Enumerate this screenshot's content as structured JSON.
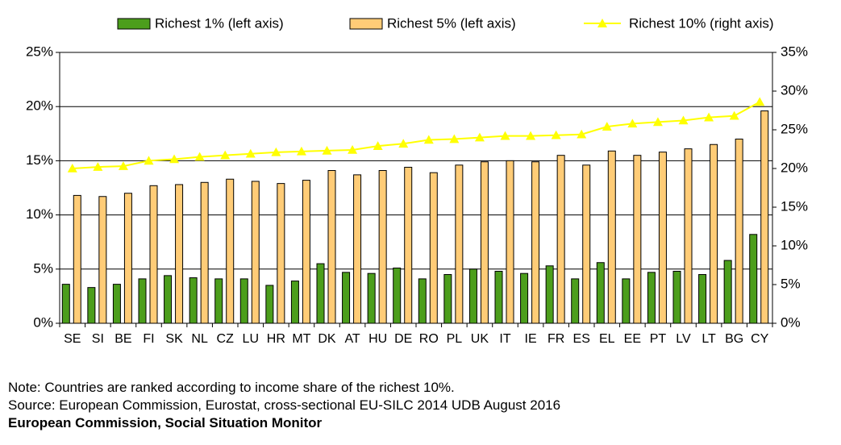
{
  "chart_data": {
    "type": "bar",
    "categories": [
      "SE",
      "SI",
      "BE",
      "FI",
      "SK",
      "NL",
      "CZ",
      "LU",
      "HR",
      "MT",
      "DK",
      "AT",
      "HU",
      "DE",
      "RO",
      "PL",
      "UK",
      "IT",
      "IE",
      "FR",
      "ES",
      "EL",
      "EE",
      "PT",
      "LV",
      "LT",
      "BG",
      "CY"
    ],
    "series": [
      {
        "name": "Richest 1% (left axis)",
        "kind": "bar",
        "axis": "left",
        "color": "#4c9e1c",
        "values": [
          3.6,
          3.3,
          3.6,
          4.1,
          4.4,
          4.2,
          4.1,
          4.1,
          3.5,
          3.9,
          5.5,
          4.7,
          4.6,
          5.1,
          4.1,
          4.5,
          5.0,
          4.8,
          4.6,
          5.3,
          4.1,
          5.6,
          4.1,
          4.7,
          4.8,
          4.5,
          5.8,
          8.2
        ]
      },
      {
        "name": "Richest 5% (left axis)",
        "kind": "bar",
        "axis": "left",
        "color": "#ffcc77",
        "values": [
          11.8,
          11.7,
          12.0,
          12.7,
          12.8,
          13.0,
          13.3,
          13.1,
          12.9,
          13.2,
          14.1,
          13.7,
          14.1,
          14.4,
          13.9,
          14.6,
          14.9,
          15.0,
          14.9,
          15.5,
          14.6,
          15.9,
          15.5,
          15.8,
          16.1,
          16.5,
          17.0,
          19.6
        ]
      },
      {
        "name": "Richest 10% (right axis)",
        "kind": "line",
        "axis": "right",
        "color": "#ffff00",
        "values": [
          20.0,
          20.2,
          20.3,
          21.0,
          21.2,
          21.5,
          21.7,
          21.9,
          22.1,
          22.2,
          22.3,
          22.4,
          22.9,
          23.2,
          23.7,
          23.8,
          24.0,
          24.2,
          24.2,
          24.3,
          24.4,
          25.4,
          25.8,
          26.0,
          26.2,
          26.6,
          26.8,
          28.6
        ]
      }
    ],
    "left_axis": {
      "min": 0,
      "max": 25,
      "step": 5,
      "format": "percent"
    },
    "right_axis": {
      "min": 0,
      "max": 35,
      "step": 5,
      "format": "percent"
    },
    "grid": "horizontal",
    "legend": "top"
  },
  "notes": {
    "line1": "Note: Countries are ranked according to income share of the richest 10%.",
    "line2": "Source: European Commission,  Eurostat, cross-sectional EU-SILC 2014 UDB August 2016",
    "line3": "European Commission,  Social Situation Monitor"
  }
}
